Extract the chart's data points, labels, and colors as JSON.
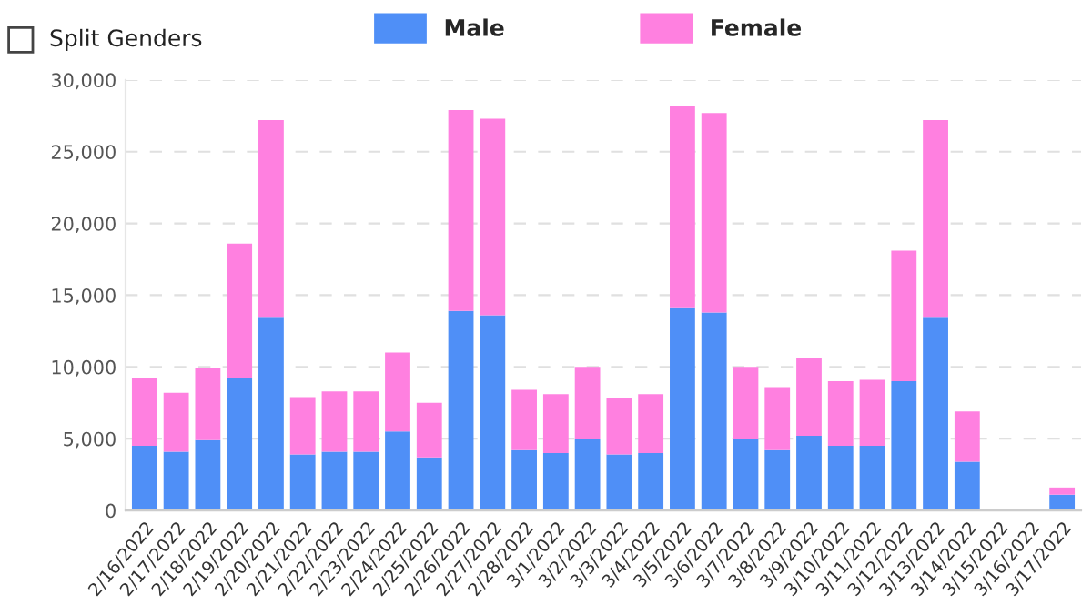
{
  "chart_data": {
    "type": "bar",
    "stacked": true,
    "categories": [
      "2/16/2022",
      "2/17/2022",
      "2/18/2022",
      "2/19/2022",
      "2/20/2022",
      "2/21/2022",
      "2/22/2022",
      "2/23/2022",
      "2/24/2022",
      "2/25/2022",
      "2/26/2022",
      "2/27/2022",
      "2/28/2022",
      "3/1/2022",
      "3/2/2022",
      "3/3/2022",
      "3/4/2022",
      "3/5/2022",
      "3/6/2022",
      "3/7/2022",
      "3/8/2022",
      "3/9/2022",
      "3/10/2022",
      "3/11/2022",
      "3/12/2022",
      "3/13/2022",
      "3/14/2022",
      "3/15/2022",
      "3/16/2022",
      "3/17/2022"
    ],
    "series": [
      {
        "name": "Male",
        "color": "#4f8ff7",
        "values": [
          4500,
          4100,
          4900,
          9200,
          13500,
          3900,
          4100,
          4100,
          5500,
          3700,
          13900,
          13600,
          4200,
          4000,
          5000,
          3900,
          4000,
          14100,
          13800,
          5000,
          4200,
          5200,
          4500,
          4500,
          9000,
          13500,
          3400,
          0,
          0,
          1100
        ]
      },
      {
        "name": "Female",
        "color": "#ff80e0",
        "values": [
          4700,
          4100,
          5000,
          9400,
          13700,
          4000,
          4200,
          4200,
          5500,
          3800,
          14000,
          13700,
          4200,
          4100,
          5000,
          3900,
          4100,
          14100,
          13900,
          5000,
          4400,
          5400,
          4500,
          4600,
          9100,
          13700,
          3500,
          0,
          0,
          500
        ]
      }
    ],
    "ylim": [
      0,
      30000
    ],
    "yticks": [
      {
        "value": 0,
        "label": "0"
      },
      {
        "value": 5000,
        "label": "5,000"
      },
      {
        "value": 10000,
        "label": "10,000"
      },
      {
        "value": 15000,
        "label": "15,000"
      },
      {
        "value": 20000,
        "label": "20,000"
      },
      {
        "value": 25000,
        "label": "25,000"
      },
      {
        "value": 30000,
        "label": "30,000"
      }
    ],
    "grid": "y",
    "legend": "top left",
    "annotations": [
      "Split Genders"
    ]
  }
}
